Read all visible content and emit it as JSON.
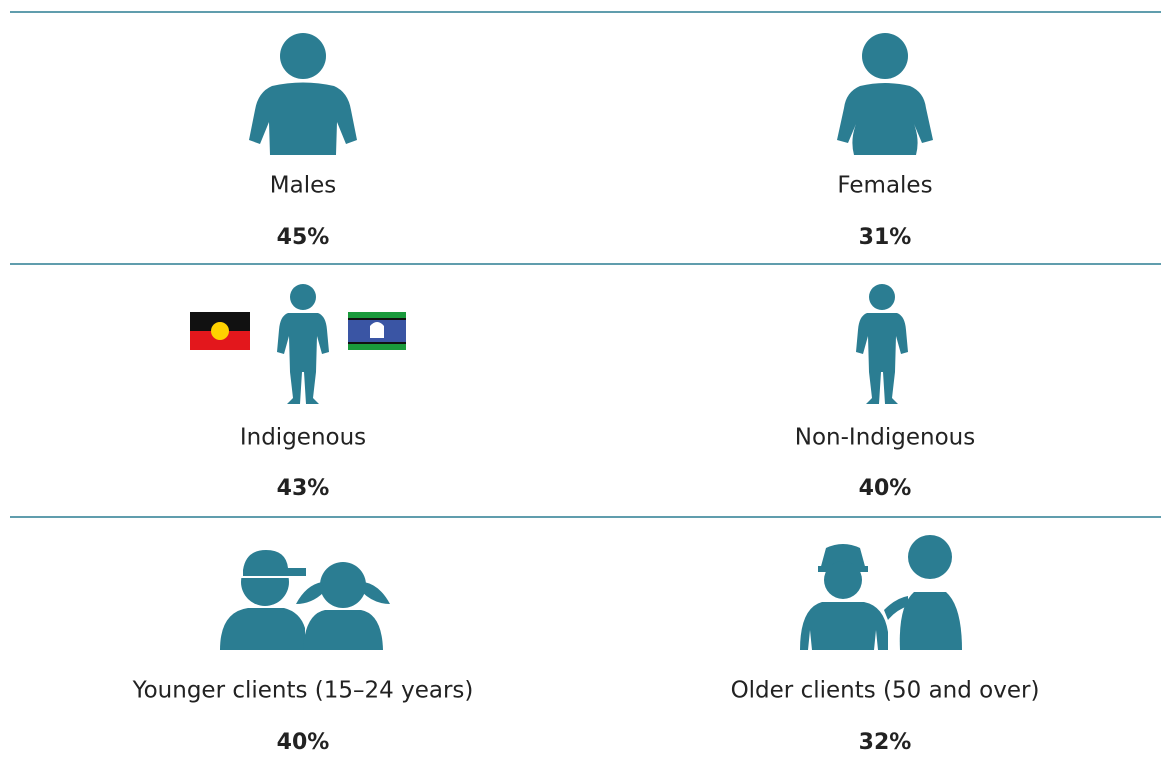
{
  "items": [
    {
      "label": "Males",
      "value": "45%"
    },
    {
      "label": "Females",
      "value": "31%"
    },
    {
      "label": "Indigenous",
      "value": "43%"
    },
    {
      "label": "Non-Indigenous",
      "value": "40%"
    },
    {
      "label": "Younger clients (15–24 years)",
      "value": "40%"
    },
    {
      "label": "Older clients (50 and over)",
      "value": "32%"
    }
  ]
}
